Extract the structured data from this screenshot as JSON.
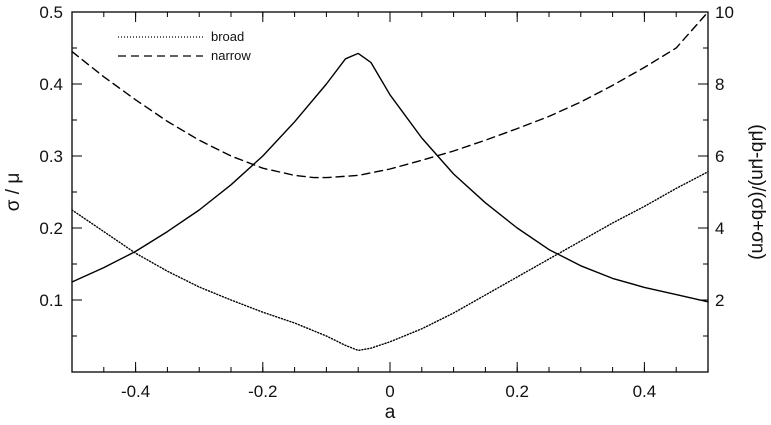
{
  "chart_data": {
    "type": "line",
    "title": "",
    "xlabel": "a",
    "ylabel": "σ / μ",
    "y2label": "(μb-μn)/(σb+σn)",
    "xlim": [
      -0.5,
      0.5
    ],
    "ylim": [
      0,
      0.5
    ],
    "y2lim": [
      0,
      10
    ],
    "xticks": [
      "-0.4",
      "-0.2",
      "0",
      "0.2",
      "0.4"
    ],
    "yticks": [
      "0.1",
      "0.2",
      "0.3",
      "0.4",
      "0.5"
    ],
    "y2ticks": [
      "2",
      "4",
      "6",
      "8",
      "10"
    ],
    "grid": false,
    "legend_position": "top-left",
    "series": [
      {
        "name": "broad",
        "axis": "left",
        "style": "dotted",
        "x": [
          -0.5,
          -0.45,
          -0.4,
          -0.35,
          -0.3,
          -0.25,
          -0.2,
          -0.15,
          -0.1,
          -0.07,
          -0.05,
          -0.03,
          0,
          0.05,
          0.1,
          0.15,
          0.2,
          0.25,
          0.3,
          0.35,
          0.4,
          0.45,
          0.5
        ],
        "y": [
          0.225,
          0.195,
          0.165,
          0.14,
          0.118,
          0.1,
          0.083,
          0.068,
          0.05,
          0.037,
          0.03,
          0.033,
          0.042,
          0.06,
          0.082,
          0.107,
          0.132,
          0.157,
          0.182,
          0.207,
          0.23,
          0.255,
          0.278
        ]
      },
      {
        "name": "narrow",
        "axis": "left",
        "style": "dashed",
        "x": [
          -0.5,
          -0.45,
          -0.4,
          -0.35,
          -0.3,
          -0.25,
          -0.2,
          -0.15,
          -0.12,
          -0.1,
          -0.05,
          0,
          0.05,
          0.1,
          0.15,
          0.2,
          0.25,
          0.3,
          0.35,
          0.4,
          0.45,
          0.5
        ],
        "y": [
          0.445,
          0.41,
          0.378,
          0.348,
          0.322,
          0.3,
          0.283,
          0.273,
          0.27,
          0.27,
          0.273,
          0.282,
          0.294,
          0.307,
          0.322,
          0.338,
          0.355,
          0.375,
          0.398,
          0.423,
          0.45,
          0.5
        ]
      },
      {
        "name": "",
        "axis": "right",
        "style": "solid",
        "x": [
          -0.5,
          -0.45,
          -0.4,
          -0.35,
          -0.3,
          -0.25,
          -0.2,
          -0.15,
          -0.1,
          -0.07,
          -0.05,
          -0.03,
          0,
          0.05,
          0.1,
          0.15,
          0.2,
          0.25,
          0.3,
          0.35,
          0.4,
          0.45,
          0.5
        ],
        "y": [
          2.5,
          2.9,
          3.35,
          3.9,
          4.5,
          5.2,
          6.0,
          6.95,
          8.0,
          8.7,
          8.85,
          8.6,
          7.7,
          6.5,
          5.5,
          4.7,
          4.0,
          3.4,
          2.95,
          2.6,
          2.35,
          2.15,
          1.95
        ]
      }
    ]
  }
}
